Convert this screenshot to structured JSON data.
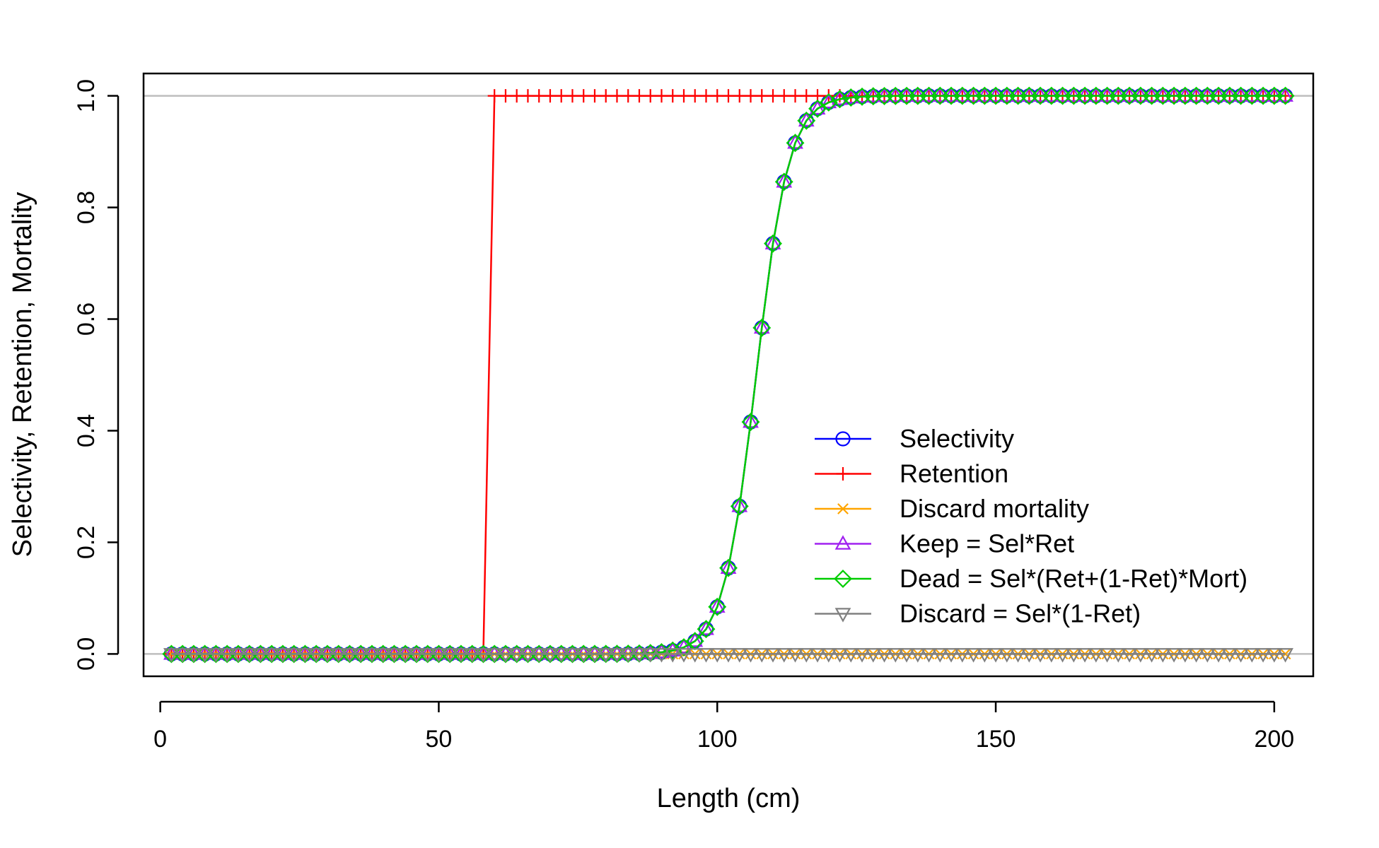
{
  "chart_data": {
    "type": "line",
    "title": "",
    "xlabel": "Length (cm)",
    "ylabel": "Selectivity, Retention, Mortality",
    "xlim": [
      -3,
      207
    ],
    "ylim": [
      -0.04,
      1.04
    ],
    "xticks": [
      0,
      50,
      100,
      150,
      200
    ],
    "yticks": [
      0.0,
      0.2,
      0.4,
      0.6,
      0.8,
      1.0
    ],
    "ytick_labels": [
      "0.0",
      "0.2",
      "0.4",
      "0.6",
      "0.8",
      "1.0"
    ],
    "hlines": [
      0,
      1
    ],
    "grid": false,
    "legend_position": "right",
    "x_start": 2,
    "x_end": 202,
    "x_step": 2,
    "selectivity_logistic": {
      "inflection": 107,
      "width": 12.9
    },
    "retention_step": {
      "knife_edge_from": 59,
      "knife_edge_to": 61
    },
    "series": [
      {
        "name": "Selectivity",
        "color": "#0000ff",
        "marker": "circle"
      },
      {
        "name": "Retention",
        "color": "#ff0000",
        "marker": "plus"
      },
      {
        "name": "Discard mortality",
        "color": "#ffa500",
        "marker": "x"
      },
      {
        "name": "Keep = Sel*Ret",
        "color": "#a020f0",
        "marker": "triangle-up"
      },
      {
        "name": "Dead = Sel*(Ret+(1-Ret)*Mort)",
        "color": "#00cd00",
        "marker": "diamond"
      },
      {
        "name": "Discard = Sel*(1-Ret)",
        "color": "#808080",
        "marker": "triangle-down"
      }
    ]
  }
}
